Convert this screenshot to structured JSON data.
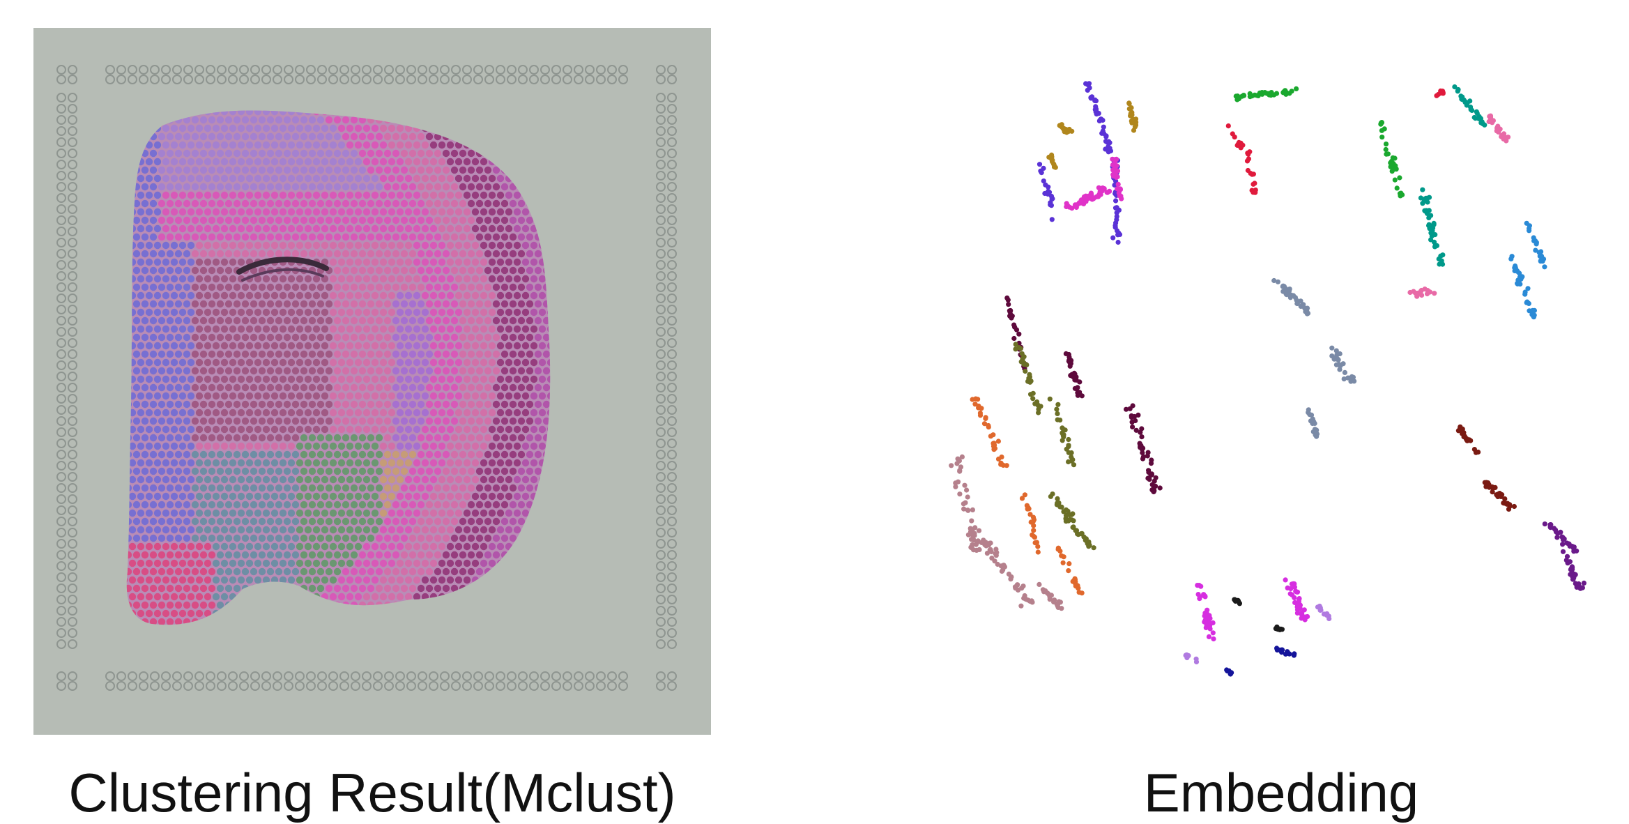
{
  "left_panel": {
    "caption": "Clustering Result(Mclust)",
    "background_color": "#b6bcb5",
    "fiducial_color": "#8e9590",
    "clusters": [
      {
        "id": "c1",
        "color": "#b04aa8"
      },
      {
        "id": "c2",
        "color": "#8f2c72"
      },
      {
        "id": "c3",
        "color": "#d86aa6"
      },
      {
        "id": "c4",
        "color": "#e04fb9"
      },
      {
        "id": "c5",
        "color": "#a36ad6"
      },
      {
        "id": "c6",
        "color": "#6a6ad8"
      },
      {
        "id": "c7",
        "color": "#9b4e7a"
      },
      {
        "id": "c8",
        "color": "#5e8fa2"
      },
      {
        "id": "c9",
        "color": "#5a9a62"
      },
      {
        "id": "c10",
        "color": "#c9a06a"
      },
      {
        "id": "c11",
        "color": "#a07fd6"
      },
      {
        "id": "c12",
        "color": "#e0407a"
      }
    ]
  },
  "right_panel": {
    "caption": "Embedding",
    "cluster_colors": [
      "#5a32d6",
      "#b0861c",
      "#e033c8",
      "#6b6f26",
      "#e0682c",
      "#b5808c",
      "#5e0a3c",
      "#1aa82e",
      "#e01a3c",
      "#00998a",
      "#e86aa6",
      "#2a8ad6",
      "#7a8aa6",
      "#7a1a12",
      "#6a1a8a",
      "#d62ee0",
      "#1a1a1a",
      "#14149a",
      "#b07ae0"
    ]
  }
}
